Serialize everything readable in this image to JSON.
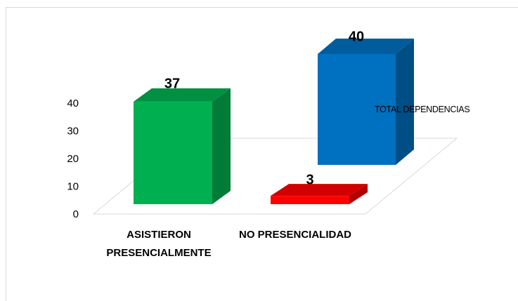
{
  "chart_data": {
    "type": "bar3d",
    "categories": [
      "ASISTIERON PRESENCIALMENTE",
      "NO PRESENCIALIDAD",
      "TOTAL DEPENDENCIAS"
    ],
    "values": [
      37,
      3,
      40
    ],
    "colors": [
      "#00b050",
      "#ff0000",
      "#0070c0"
    ],
    "ylim": [
      0,
      40
    ],
    "yticks": [
      0,
      10,
      20,
      30,
      40
    ]
  }
}
